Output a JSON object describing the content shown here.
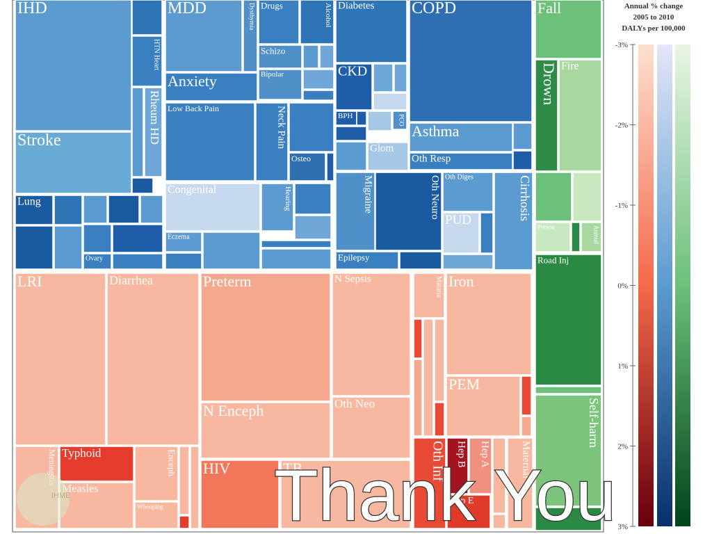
{
  "treemap": {
    "labels": [
      "IHD",
      "HTN Heart",
      "Rheum HD",
      "Stroke",
      "Lung",
      "Ovary",
      "MDD",
      "Dysthymia",
      "Drugs",
      "Alcohol",
      "Schizo",
      "Bipolar",
      "Anxiety",
      "Low Back Pain",
      "Neck Pain",
      "Osteo",
      "Congenital",
      "Hearing",
      "Eczema",
      "Diabetes",
      "COPD",
      "CKD",
      "BPH",
      "PCO",
      "Glom",
      "Asthma",
      "Oth Resp",
      "Migraine",
      "Oth Neuro",
      "Epilepsy",
      "Oth Diges",
      "PUD",
      "Cirrhosis",
      "Fall",
      "Drown",
      "Fire",
      "Poison",
      "Animal",
      "Road Inj",
      "Self-harm",
      "LRI",
      "Diarrhea",
      "Meningitis",
      "Typhoid",
      "Measles",
      "Enceph",
      "Whooping",
      "Preterm",
      "N Enceph",
      "HIV",
      "TB",
      "N Sepsis",
      "Oth Neo",
      "Malaria",
      "Iron",
      "PEM",
      "Oth Inf",
      "Hep B",
      "Hep A",
      "Hep E",
      "Maternal"
    ]
  },
  "legend": {
    "title": [
      "Annual % change",
      "2005 to 2010",
      "DALYs per 100,000"
    ],
    "ticks": [
      "-3%",
      "-2%",
      "-1%",
      "0%",
      "1%",
      "2%",
      "3%"
    ]
  },
  "overlay": "Thank You",
  "watermark": "IHME"
}
